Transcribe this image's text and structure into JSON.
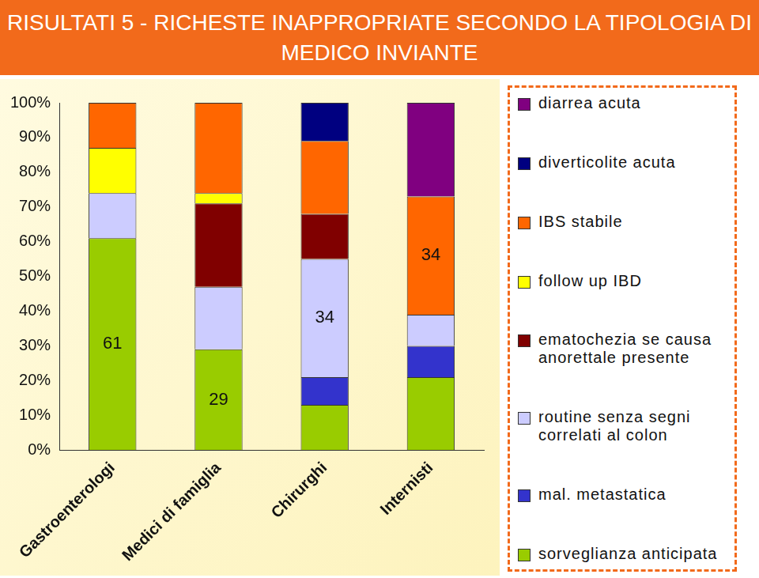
{
  "chart_data": {
    "type": "bar",
    "title": "RISULTATI 5 - RICHESTE INAPPROPRIATE SECONDO LA TIPOLOGIA DI MEDICO INVIANTE",
    "categories": [
      "Gastroenterologi",
      "Medici di famiglia",
      "Chirurghi",
      "Internisti"
    ],
    "stacked": true,
    "data_labels": true,
    "grid": false,
    "legend": "right",
    "ylim": [
      0,
      100
    ],
    "yticks": [
      {
        "value": 0,
        "label": "0%"
      },
      {
        "value": 10,
        "label": "10%"
      },
      {
        "value": 20,
        "label": "20%"
      },
      {
        "value": 30,
        "label": "30%"
      },
      {
        "value": 40,
        "label": "40%"
      },
      {
        "value": 50,
        "label": "50%"
      },
      {
        "value": 60,
        "label": "60%"
      },
      {
        "value": 70,
        "label": "70%"
      },
      {
        "value": 80,
        "label": "80%"
      },
      {
        "value": 90,
        "label": "90%"
      },
      {
        "value": 100,
        "label": "100%"
      }
    ],
    "series": [
      {
        "name": "sorveglianza anticipata",
        "color": "#99cc00",
        "values": [
          61,
          29,
          13,
          21
        ],
        "value_labels": [
          "61",
          "29",
          null,
          null
        ]
      },
      {
        "name": "mal. metastatica",
        "color": "#3333cc",
        "values": [
          0,
          0,
          8,
          9
        ],
        "value_labels": [
          null,
          null,
          null,
          null
        ]
      },
      {
        "name": "routine senza segni correlati al colon",
        "color": "#ccccff",
        "values": [
          13,
          18,
          34,
          9
        ],
        "value_labels": [
          null,
          null,
          "34",
          null
        ]
      },
      {
        "name": "ematochezia se causa anorettale presente",
        "color": "#800000",
        "values": [
          0,
          24,
          13,
          0
        ],
        "value_labels": [
          null,
          null,
          null,
          null
        ]
      },
      {
        "name": "follow up IBD",
        "color": "#ffff00",
        "values": [
          13,
          3,
          0,
          0
        ],
        "value_labels": [
          null,
          null,
          null,
          null
        ]
      },
      {
        "name": "IBS stabile",
        "color": "#ff6600",
        "values": [
          13,
          26,
          21,
          34
        ],
        "value_labels": [
          null,
          null,
          null,
          "34"
        ]
      },
      {
        "name": "diverticolite acuta",
        "color": "#000080",
        "values": [
          0,
          0,
          11,
          0
        ],
        "value_labels": [
          null,
          null,
          null,
          null
        ]
      },
      {
        "name": "diarrea acuta",
        "color": "#800080",
        "values": [
          0,
          0,
          0,
          27
        ],
        "value_labels": [
          null,
          null,
          null,
          null
        ]
      }
    ]
  }
}
